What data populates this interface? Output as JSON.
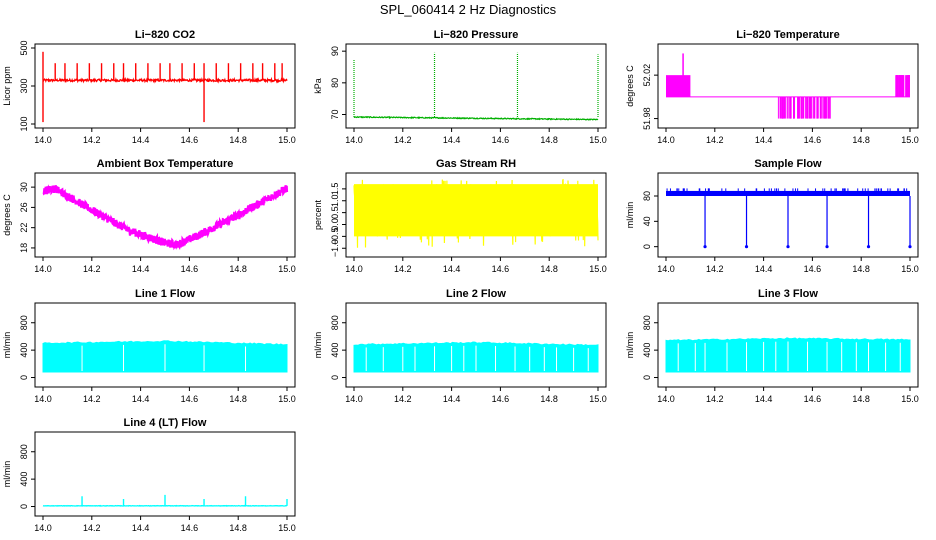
{
  "page_title": "SPL_060414  2 Hz Diagnostics",
  "chart_data": [
    {
      "type": "line",
      "title": "Li−820 CO2",
      "ylabel": "Licor ppm",
      "color": "#ff0000",
      "xlim": [
        14.0,
        15.0
      ],
      "ylim": [
        100,
        500
      ],
      "yticks": [
        100,
        300,
        500
      ],
      "ytick_labels": [
        "100",
        "300",
        "500"
      ],
      "xticks": [
        14.0,
        14.2,
        14.4,
        14.6,
        14.8,
        15.0
      ],
      "xtick_labels": [
        "14.0",
        "14.2",
        "14.4",
        "14.6",
        "14.8",
        "15.0"
      ],
      "pattern": "base_spikes",
      "base": 330,
      "noise": 6,
      "spikes": [
        [
          14.0,
          480
        ],
        [
          14.0,
          110
        ],
        [
          14.05,
          420
        ],
        [
          14.09,
          420
        ],
        [
          14.14,
          420
        ],
        [
          14.19,
          420
        ],
        [
          14.24,
          420
        ],
        [
          14.29,
          420
        ],
        [
          14.33,
          420
        ],
        [
          14.38,
          420
        ],
        [
          14.43,
          420
        ],
        [
          14.48,
          420
        ],
        [
          14.52,
          420
        ],
        [
          14.57,
          420
        ],
        [
          14.62,
          420
        ],
        [
          14.66,
          420
        ],
        [
          14.66,
          110
        ],
        [
          14.71,
          420
        ],
        [
          14.76,
          420
        ],
        [
          14.81,
          420
        ],
        [
          14.86,
          420
        ],
        [
          14.9,
          420
        ],
        [
          14.95,
          420
        ],
        [
          14.98,
          420
        ]
      ]
    },
    {
      "type": "line",
      "title": "Li−820 Pressure",
      "ylabel": "kPa",
      "color": "#00b000",
      "xlim": [
        14.0,
        15.0
      ],
      "ylim": [
        67,
        91
      ],
      "yticks": [
        70,
        80,
        90
      ],
      "ytick_labels": [
        "70",
        "80",
        "90"
      ],
      "xticks": [
        14.0,
        14.2,
        14.4,
        14.6,
        14.8,
        15.0
      ],
      "xtick_labels": [
        "14.0",
        "14.2",
        "14.4",
        "14.6",
        "14.8",
        "15.0"
      ],
      "pattern": "pressure",
      "start": 69.2,
      "end": 68.4,
      "noise": 0.15,
      "spikes": [
        [
          14.0,
          87.5
        ],
        [
          14.33,
          89.5
        ],
        [
          14.67,
          89.5
        ],
        [
          15.0,
          89.0
        ]
      ]
    },
    {
      "type": "line",
      "title": "Li−820 Temperature",
      "ylabel": "degrees C",
      "color": "#ff00ff",
      "xlim": [
        14.0,
        15.0
      ],
      "ylim": [
        51.975,
        52.045
      ],
      "yticks": [
        51.98,
        52.02
      ],
      "ytick_labels": [
        "51.98",
        "52.02"
      ],
      "xticks": [
        14.0,
        14.2,
        14.4,
        14.6,
        14.8,
        15.0
      ],
      "xtick_labels": [
        "14.0",
        "14.2",
        "14.4",
        "14.6",
        "14.8",
        "15.0"
      ],
      "pattern": "temp_steps",
      "base": 52.0,
      "high": 52.02,
      "low": 51.98,
      "peak": 52.04
    },
    {
      "type": "line",
      "title": "Ambient Box Temperature",
      "ylabel": "degrees C",
      "color": "#ff00ff",
      "xlim": [
        14.0,
        15.0
      ],
      "ylim": [
        17,
        32
      ],
      "yticks": [
        18,
        22,
        26,
        30
      ],
      "ytick_labels": [
        "18",
        "22",
        "26",
        "30"
      ],
      "xticks": [
        14.0,
        14.2,
        14.4,
        14.6,
        14.8,
        15.0
      ],
      "xtick_labels": [
        "14.0",
        "14.2",
        "14.4",
        "14.6",
        "14.8",
        "15.0"
      ],
      "pattern": "vshape",
      "points": [
        [
          14.0,
          29.3
        ],
        [
          14.05,
          29.7
        ],
        [
          14.2,
          25.5
        ],
        [
          14.35,
          21.5
        ],
        [
          14.5,
          19.0
        ],
        [
          14.55,
          18.6
        ],
        [
          14.65,
          20.8
        ],
        [
          14.8,
          24.5
        ],
        [
          15.0,
          29.8
        ]
      ],
      "band": 1.6
    },
    {
      "type": "line",
      "title": "Gas Stream RH",
      "ylabel": "percent",
      "color": "#ffff00",
      "xlim": [
        14.0,
        15.0
      ],
      "ylim": [
        -1.2,
        2.0
      ],
      "yticks": [
        -1.0,
        -0.5,
        0.0,
        0.5,
        1.0,
        1.5
      ],
      "ytick_labels": [
        "−1.0",
        "−0.5",
        "0.0",
        "0.5",
        "1.0",
        "1.5"
      ],
      "xticks": [
        14.0,
        14.2,
        14.4,
        14.6,
        14.8,
        15.0
      ],
      "xtick_labels": [
        "14.0",
        "14.2",
        "14.4",
        "14.6",
        "14.8",
        "15.0"
      ],
      "pattern": "noise_band",
      "lo": -0.5,
      "hi": 1.7,
      "min": -1.0,
      "max": 1.9
    },
    {
      "type": "line",
      "title": "Sample Flow",
      "ylabel": "ml/min",
      "color": "#0000ff",
      "xlim": [
        14.0,
        15.0
      ],
      "ylim": [
        -10,
        110
      ],
      "yticks": [
        0,
        40,
        80
      ],
      "ytick_labels": [
        "0",
        "40",
        "80"
      ],
      "xticks": [
        14.0,
        14.2,
        14.4,
        14.6,
        14.8,
        15.0
      ],
      "xtick_labels": [
        "14.0",
        "14.2",
        "14.4",
        "14.6",
        "14.8",
        "15.0"
      ],
      "pattern": "band_dips",
      "lo": 80,
      "hi": 88,
      "up": 92,
      "dips": [
        14.16,
        14.33,
        14.5,
        14.66,
        14.83,
        15.0
      ],
      "dip_value": 0
    },
    {
      "type": "area",
      "title": "Line 1 Flow",
      "ylabel": "ml/min",
      "color": "#00ffff",
      "xlim": [
        14.0,
        15.0
      ],
      "ylim": [
        -80,
        1030
      ],
      "yticks": [
        0,
        400,
        800
      ],
      "ytick_labels": [
        "0",
        "400",
        "800"
      ],
      "xticks": [
        14.0,
        14.2,
        14.4,
        14.6,
        14.8,
        15.0
      ],
      "xtick_labels": [
        "14.0",
        "14.2",
        "14.4",
        "14.6",
        "14.8",
        "15.0"
      ],
      "pattern": "flow_block",
      "lo": 80,
      "hi_start": 500,
      "hi_mid": 530,
      "hi_end": 480,
      "gaps": [
        14.16,
        14.33,
        14.5,
        14.66,
        14.83
      ]
    },
    {
      "type": "area",
      "title": "Line 2 Flow",
      "ylabel": "ml/min",
      "color": "#00ffff",
      "xlim": [
        14.0,
        15.0
      ],
      "ylim": [
        -80,
        1030
      ],
      "yticks": [
        0,
        400,
        800
      ],
      "ytick_labels": [
        "0",
        "400",
        "800"
      ],
      "xticks": [
        14.0,
        14.2,
        14.4,
        14.6,
        14.8,
        15.0
      ],
      "xtick_labels": [
        "14.0",
        "14.2",
        "14.4",
        "14.6",
        "14.8",
        "15.0"
      ],
      "pattern": "flow_block",
      "lo": 80,
      "hi_start": 480,
      "hi_mid": 510,
      "hi_end": 470,
      "gaps": [
        14.05,
        14.12,
        14.2,
        14.25,
        14.33,
        14.4,
        14.45,
        14.5,
        14.58,
        14.66,
        14.72,
        14.78,
        14.83,
        14.9,
        14.96
      ]
    },
    {
      "type": "area",
      "title": "Line 3 Flow",
      "ylabel": "ml/min",
      "color": "#00ffff",
      "xlim": [
        14.0,
        15.0
      ],
      "ylim": [
        -80,
        1030
      ],
      "yticks": [
        0,
        400,
        800
      ],
      "ytick_labels": [
        "0",
        "400",
        "800"
      ],
      "xticks": [
        14.0,
        14.2,
        14.4,
        14.6,
        14.8,
        15.0
      ],
      "xtick_labels": [
        "14.0",
        "14.2",
        "14.4",
        "14.6",
        "14.8",
        "15.0"
      ],
      "pattern": "flow_block",
      "lo": 80,
      "hi_start": 540,
      "hi_mid": 570,
      "hi_end": 550,
      "gaps": [
        14.05,
        14.12,
        14.16,
        14.25,
        14.33,
        14.4,
        14.45,
        14.5,
        14.58,
        14.66,
        14.72,
        14.78,
        14.83,
        14.9,
        14.96
      ]
    },
    {
      "type": "line",
      "title": "Line 4 (LT) Flow",
      "ylabel": "ml/min",
      "color": "#00ffff",
      "xlim": [
        14.0,
        15.0
      ],
      "ylim": [
        -80,
        1030
      ],
      "yticks": [
        0,
        400,
        800
      ],
      "ytick_labels": [
        "0",
        "400",
        "800"
      ],
      "xticks": [
        14.0,
        14.2,
        14.4,
        14.6,
        14.8,
        15.0
      ],
      "xtick_labels": [
        "14.0",
        "14.2",
        "14.4",
        "14.6",
        "14.8",
        "15.0"
      ],
      "pattern": "base_spikes",
      "base": 10,
      "noise": 3,
      "spikes": [
        [
          14.16,
          150
        ],
        [
          14.33,
          110
        ],
        [
          14.5,
          170
        ],
        [
          14.66,
          110
        ],
        [
          14.83,
          150
        ],
        [
          15.0,
          110
        ]
      ]
    }
  ]
}
